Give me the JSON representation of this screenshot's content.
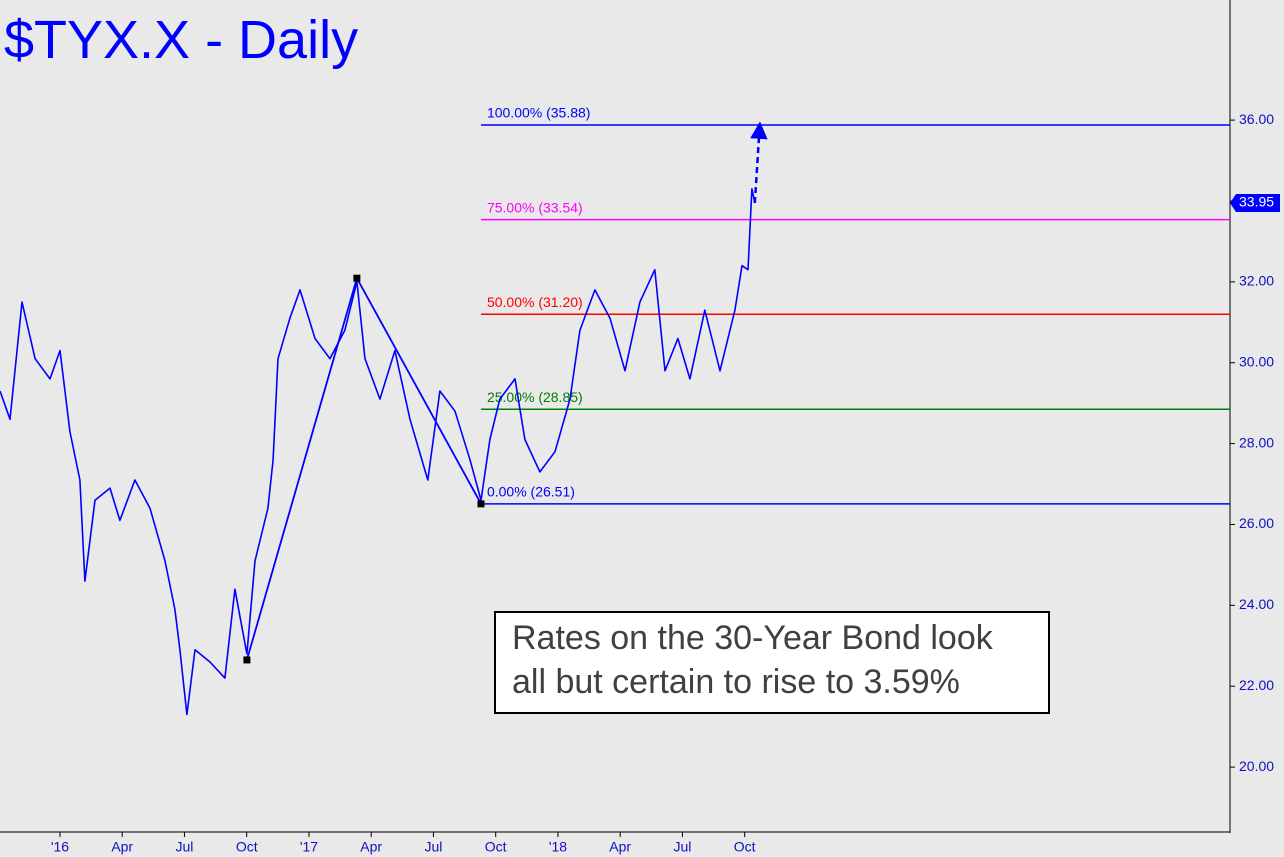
{
  "chart_data": {
    "type": "line",
    "title": "$TYX.X - Daily",
    "color": "#0000ff",
    "x": [
      -2.89,
      -2.41,
      -1.83,
      -1.2,
      -0.48,
      0,
      0.48,
      0.96,
      1.2,
      1.69,
      2.41,
      2.89,
      3.61,
      4.34,
      5.06,
      5.54,
      5.78,
      6.12,
      6.51,
      7.23,
      7.95,
      8.43,
      9.01,
      9.4,
      10.02,
      10.27,
      10.51,
      11.08,
      11.57,
      12.29,
      13.01,
      13.73,
      14.31,
      14.7,
      15.42,
      16.14,
      16.87,
      17.73,
      18.31,
      19.04,
      19.76,
      20.29,
      20.72,
      21.2,
      21.93,
      22.41,
      23.13,
      23.86,
      24.58,
      25.06,
      25.78,
      26.51,
      27.23,
      27.95,
      28.67,
      29.16,
      29.78,
      30.36,
      31.08,
      31.81,
      32.53,
      32.87,
      33.16,
      33.35,
      33.49
    ],
    "values": [
      29.3,
      28.6,
      31.5,
      30.1,
      29.6,
      30.3,
      28.3,
      27.1,
      24.6,
      26.6,
      26.9,
      26.1,
      27.1,
      26.4,
      25.1,
      23.9,
      22.9,
      21.3,
      22.9,
      22.6,
      22.2,
      24.4,
      22.8,
      25.1,
      26.4,
      27.6,
      30.1,
      31.1,
      31.8,
      30.6,
      30.1,
      30.8,
      32.0,
      30.1,
      29.1,
      30.3,
      28.6,
      27.1,
      29.3,
      28.8,
      27.6,
      26.6,
      28.1,
      29.1,
      29.6,
      28.1,
      27.3,
      27.8,
      29.1,
      30.8,
      31.8,
      31.1,
      29.8,
      31.5,
      32.3,
      29.8,
      30.6,
      29.6,
      31.3,
      29.8,
      31.3,
      32.4,
      32.3,
      34.3,
      33.95
    ],
    "xlim": [
      -2.89,
      56.39
    ],
    "ylim": [
      18.37,
      38.97
    ],
    "xticks": [
      {
        "value": 0,
        "label": "'16"
      },
      {
        "value": 3,
        "label": "Apr"
      },
      {
        "value": 6,
        "label": "Jul"
      },
      {
        "value": 9,
        "label": "Oct"
      },
      {
        "value": 12,
        "label": "'17"
      },
      {
        "value": 15,
        "label": "Apr"
      },
      {
        "value": 18,
        "label": "Jul"
      },
      {
        "value": 21,
        "label": "Oct"
      },
      {
        "value": 24,
        "label": "'18"
      },
      {
        "value": 27,
        "label": "Apr"
      },
      {
        "value": 30,
        "label": "Jul"
      },
      {
        "value": 33,
        "label": "Oct"
      }
    ],
    "yticks": [
      {
        "value": 20,
        "label": "20.00"
      },
      {
        "value": 22,
        "label": "22.00"
      },
      {
        "value": 24,
        "label": "24.00"
      },
      {
        "value": 26,
        "label": "26.00"
      },
      {
        "value": 28,
        "label": "28.00"
      },
      {
        "value": 30,
        "label": "30.00"
      },
      {
        "value": 32,
        "label": "32.00"
      },
      {
        "value": 34,
        "label": "34.00"
      },
      {
        "value": 36,
        "label": "36.00"
      }
    ],
    "levels": [
      {
        "label": "100.00% (35.88)",
        "value": 35.88,
        "color": "#0000ff"
      },
      {
        "label": "75.00% (33.54)",
        "value": 33.54,
        "color": "#ff00ff"
      },
      {
        "label": "50.00% (31.20)",
        "value": 31.2,
        "color": "#ff0000"
      },
      {
        "label": "25.00% (28.85)",
        "value": 28.85,
        "color": "#008000"
      },
      {
        "label": "0.00% (26.51)",
        "value": 26.51,
        "color": "#0000ff"
      }
    ],
    "pattern": {
      "x": [
        9.01,
        14.31,
        20.29
      ],
      "values": [
        22.65,
        32.09,
        26.51
      ]
    },
    "projection": {
      "x": [
        33.49,
        33.73
      ],
      "values": [
        33.95,
        35.88
      ]
    },
    "last_price": {
      "value": 33.95,
      "label": "33.95"
    },
    "annotation": [
      "Rates on the 30-Year Bond look",
      "all but certain to rise to 3.59%"
    ]
  }
}
